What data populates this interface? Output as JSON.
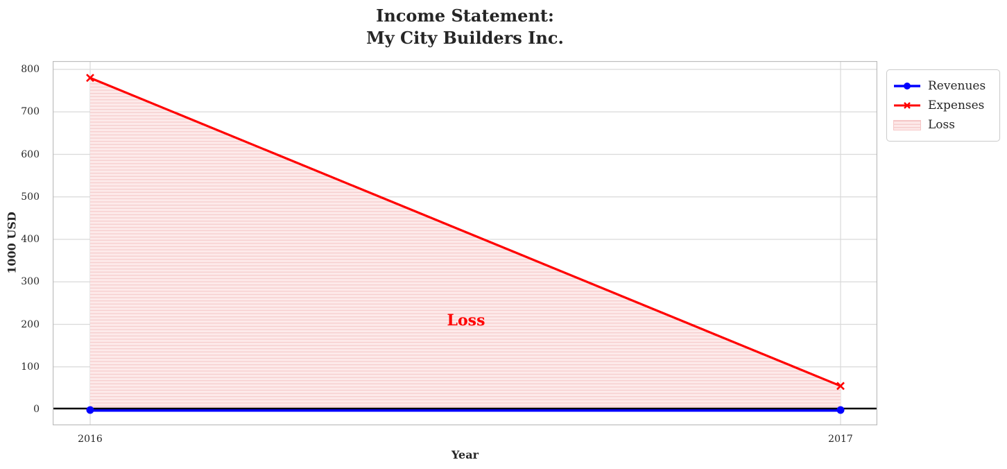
{
  "chart_data": {
    "type": "line",
    "title": "Income Statement:\nMy City Builders Inc.",
    "title_lines": [
      "Income Statement:",
      "My City Builders Inc."
    ],
    "xlabel": "Year",
    "ylabel": "1000 USD",
    "x": [
      2016,
      2017
    ],
    "xtick_labels": [
      "2016",
      "2017"
    ],
    "yticks": [
      0,
      100,
      200,
      300,
      400,
      500,
      600,
      700,
      800
    ],
    "ylim": [
      -40,
      820
    ],
    "grid": true,
    "series": [
      {
        "name": "Revenues",
        "values": [
          0,
          0
        ],
        "color": "#0000ff",
        "marker": "circle",
        "linewidth": 3.5
      },
      {
        "name": "Expenses",
        "values": [
          780,
          55
        ],
        "color": "#ff0000",
        "marker": "x",
        "linewidth": 3.2
      }
    ],
    "fill_between": {
      "label": "Loss",
      "upper_series": "Expenses",
      "lower_series": "Revenues",
      "facecolor": "#fdeaea",
      "hatch": "-",
      "hatch_color": "#f6cdcd"
    },
    "zero_line": {
      "value": 0,
      "color": "#000000"
    },
    "annotation": {
      "text": "Loss",
      "x": 2016.5,
      "y": 210,
      "color": "#ff0000"
    },
    "legend": {
      "location": "outside-upper-right",
      "entries": [
        "Revenues",
        "Expenses",
        "Loss"
      ]
    },
    "colors": {
      "grid": "#d9d9d9",
      "spine": "#bdbdbd",
      "text": "#262626",
      "annotation": "#ff0000"
    }
  }
}
